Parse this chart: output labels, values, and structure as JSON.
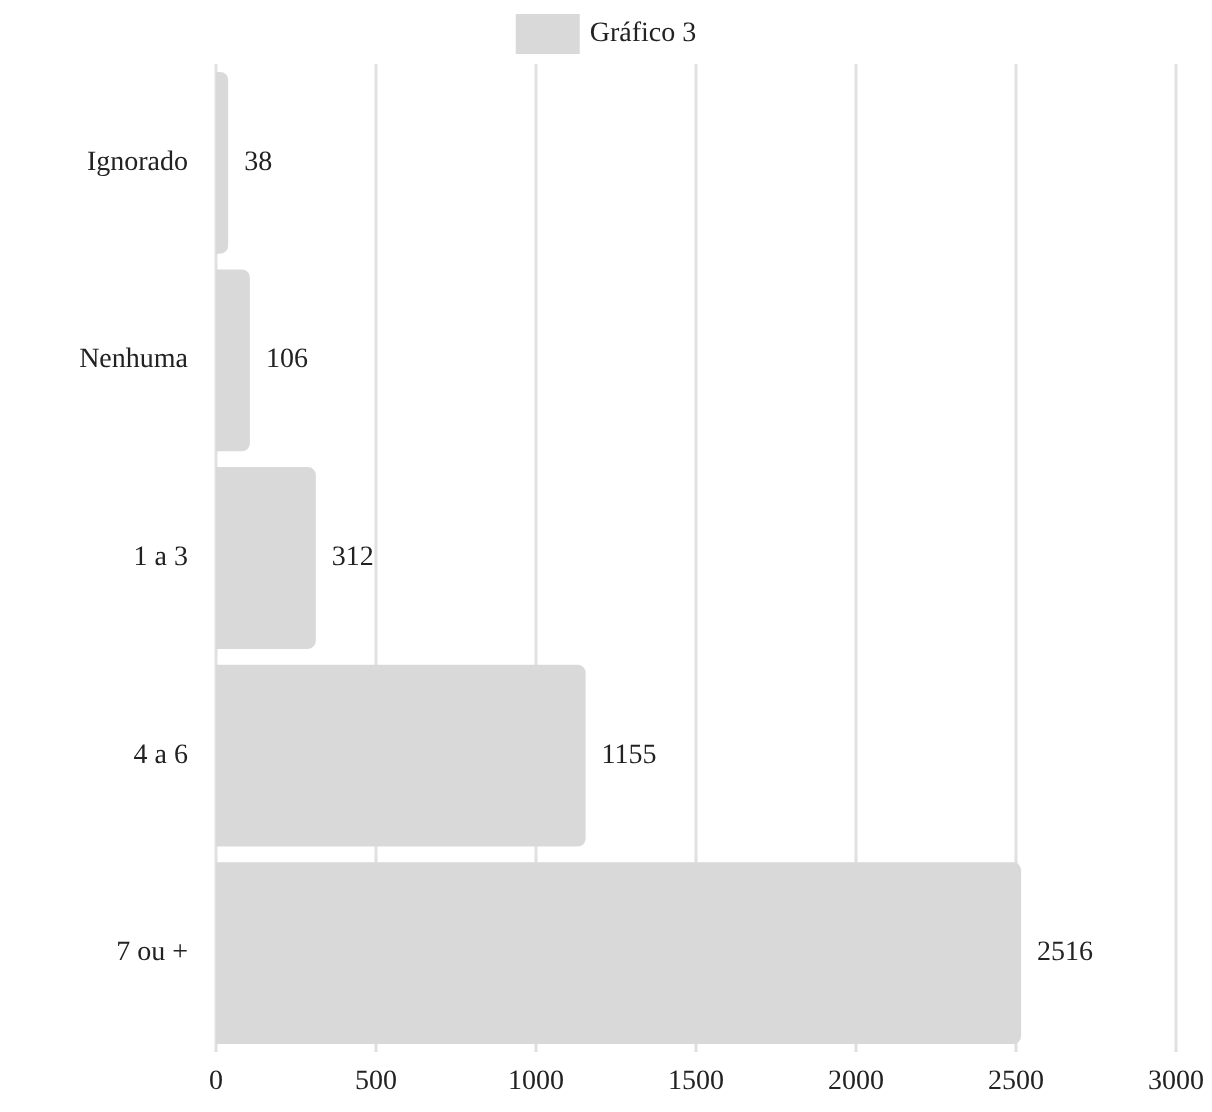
{
  "chart_data": {
    "type": "bar",
    "orientation": "horizontal",
    "categories": [
      "Ignorado",
      "Nenhuma",
      "1 a 3",
      "4 a 6",
      "7 ou +"
    ],
    "series": [
      {
        "name": "Gráfico 3",
        "color": "#d9d9d9",
        "values": [
          38,
          106,
          312,
          1155,
          2516
        ]
      }
    ],
    "xlim": [
      0,
      3000
    ],
    "xticks": [
      0,
      500,
      1000,
      1500,
      2000,
      2500,
      3000
    ],
    "grid": "x",
    "legend": "top",
    "data_labels": true
  }
}
